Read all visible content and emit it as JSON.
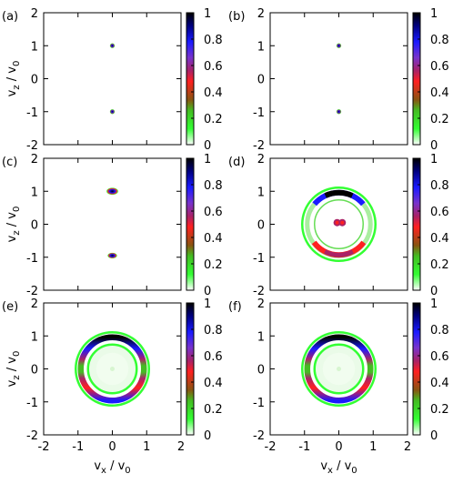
{
  "figure": {
    "xlabel": "v",
    "xlabel_sub": "x",
    "xlabel_rest": " / v",
    "xlabel_rest_sub": "0",
    "ylabel": "v",
    "ylabel_sub": "z",
    "ylabel_rest": " / v",
    "ylabel_rest_sub": "0"
  },
  "chart_data": [
    {
      "type": "heatmap",
      "panel_label": "(a)",
      "pattern": "two_spots",
      "xlim": [
        -2,
        2
      ],
      "ylim": [
        -2,
        2
      ],
      "xticks": [
        "-2",
        "-1",
        "0",
        "1",
        "2"
      ],
      "yticks": [
        "-2",
        "-1",
        "0",
        "1",
        "2"
      ],
      "colorbar": {
        "range": [
          0,
          1
        ],
        "ticks": [
          "0",
          "0.2",
          "0.4",
          "0.6",
          "0.8",
          "1"
        ]
      },
      "features": {
        "spots": [
          {
            "vx": 0,
            "vz": 1,
            "radius": 0.08
          },
          {
            "vx": 0,
            "vz": -1,
            "radius": 0.08
          }
        ]
      }
    },
    {
      "type": "heatmap",
      "panel_label": "(b)",
      "pattern": "two_spots",
      "xlim": [
        -2,
        2
      ],
      "ylim": [
        -2,
        2
      ],
      "xticks": [
        "-2",
        "-1",
        "0",
        "1",
        "2"
      ],
      "yticks": [
        "-2",
        "-1",
        "0",
        "1",
        "2"
      ],
      "colorbar": {
        "range": [
          0,
          1
        ],
        "ticks": [
          "0",
          "0.2",
          "0.4",
          "0.6",
          "0.8",
          "1"
        ]
      },
      "features": {
        "spots": [
          {
            "vx": 0,
            "vz": 1,
            "radius": 0.08
          },
          {
            "vx": 0,
            "vz": -1,
            "radius": 0.08
          }
        ]
      }
    },
    {
      "type": "heatmap",
      "panel_label": "(c)",
      "pattern": "crescents",
      "xlim": [
        -2,
        2
      ],
      "ylim": [
        -2,
        2
      ],
      "xticks": [
        "-2",
        "-1",
        "0",
        "1",
        "2"
      ],
      "yticks": [
        "-2",
        "-1",
        "0",
        "1",
        "2"
      ],
      "colorbar": {
        "range": [
          0,
          1
        ],
        "ticks": [
          "0",
          "0.2",
          "0.4",
          "0.6",
          "0.8",
          "1"
        ]
      },
      "features": {
        "spots": [
          {
            "vx": 0,
            "vz": 1,
            "radius": 0.15
          },
          {
            "vx": 0,
            "vz": -0.95,
            "radius": 0.12
          }
        ]
      }
    },
    {
      "type": "heatmap",
      "panel_label": "(d)",
      "pattern": "ring_partial",
      "xlim": [
        -2,
        2
      ],
      "ylim": [
        -2,
        2
      ],
      "xticks": [
        "-2",
        "-1",
        "0",
        "1",
        "2"
      ],
      "yticks": [
        "-2",
        "-1",
        "0",
        "1",
        "2"
      ],
      "colorbar": {
        "range": [
          0,
          1
        ],
        "ticks": [
          "0",
          "0.2",
          "0.4",
          "0.6",
          "0.8",
          "1"
        ]
      },
      "features": {
        "ring_radius": 1.0,
        "center_spots": [
          {
            "vx": -0.05,
            "vz": 0.05
          },
          {
            "vx": 0.1,
            "vz": 0.05
          }
        ]
      }
    },
    {
      "type": "heatmap",
      "panel_label": "(e)",
      "pattern": "ring_full",
      "xlim": [
        -2,
        2
      ],
      "ylim": [
        -2,
        2
      ],
      "xticks": [
        "-2",
        "-1",
        "0",
        "1",
        "2"
      ],
      "yticks": [
        "-2",
        "-1",
        "0",
        "1",
        "2"
      ],
      "colorbar": {
        "range": [
          0,
          1
        ],
        "ticks": [
          "0",
          "0.2",
          "0.4",
          "0.6",
          "0.8",
          "1"
        ]
      },
      "features": {
        "ring_radius": 1.0
      }
    },
    {
      "type": "heatmap",
      "panel_label": "(f)",
      "pattern": "ring_full",
      "xlim": [
        -2,
        2
      ],
      "ylim": [
        -2,
        2
      ],
      "xticks": [
        "-2",
        "-1",
        "0",
        "1",
        "2"
      ],
      "yticks": [
        "-2",
        "-1",
        "0",
        "1",
        "2"
      ],
      "colorbar": {
        "range": [
          0,
          1
        ],
        "ticks": [
          "0",
          "0.2",
          "0.4",
          "0.6",
          "0.8",
          "1"
        ]
      },
      "features": {
        "ring_radius": 1.0
      }
    }
  ]
}
